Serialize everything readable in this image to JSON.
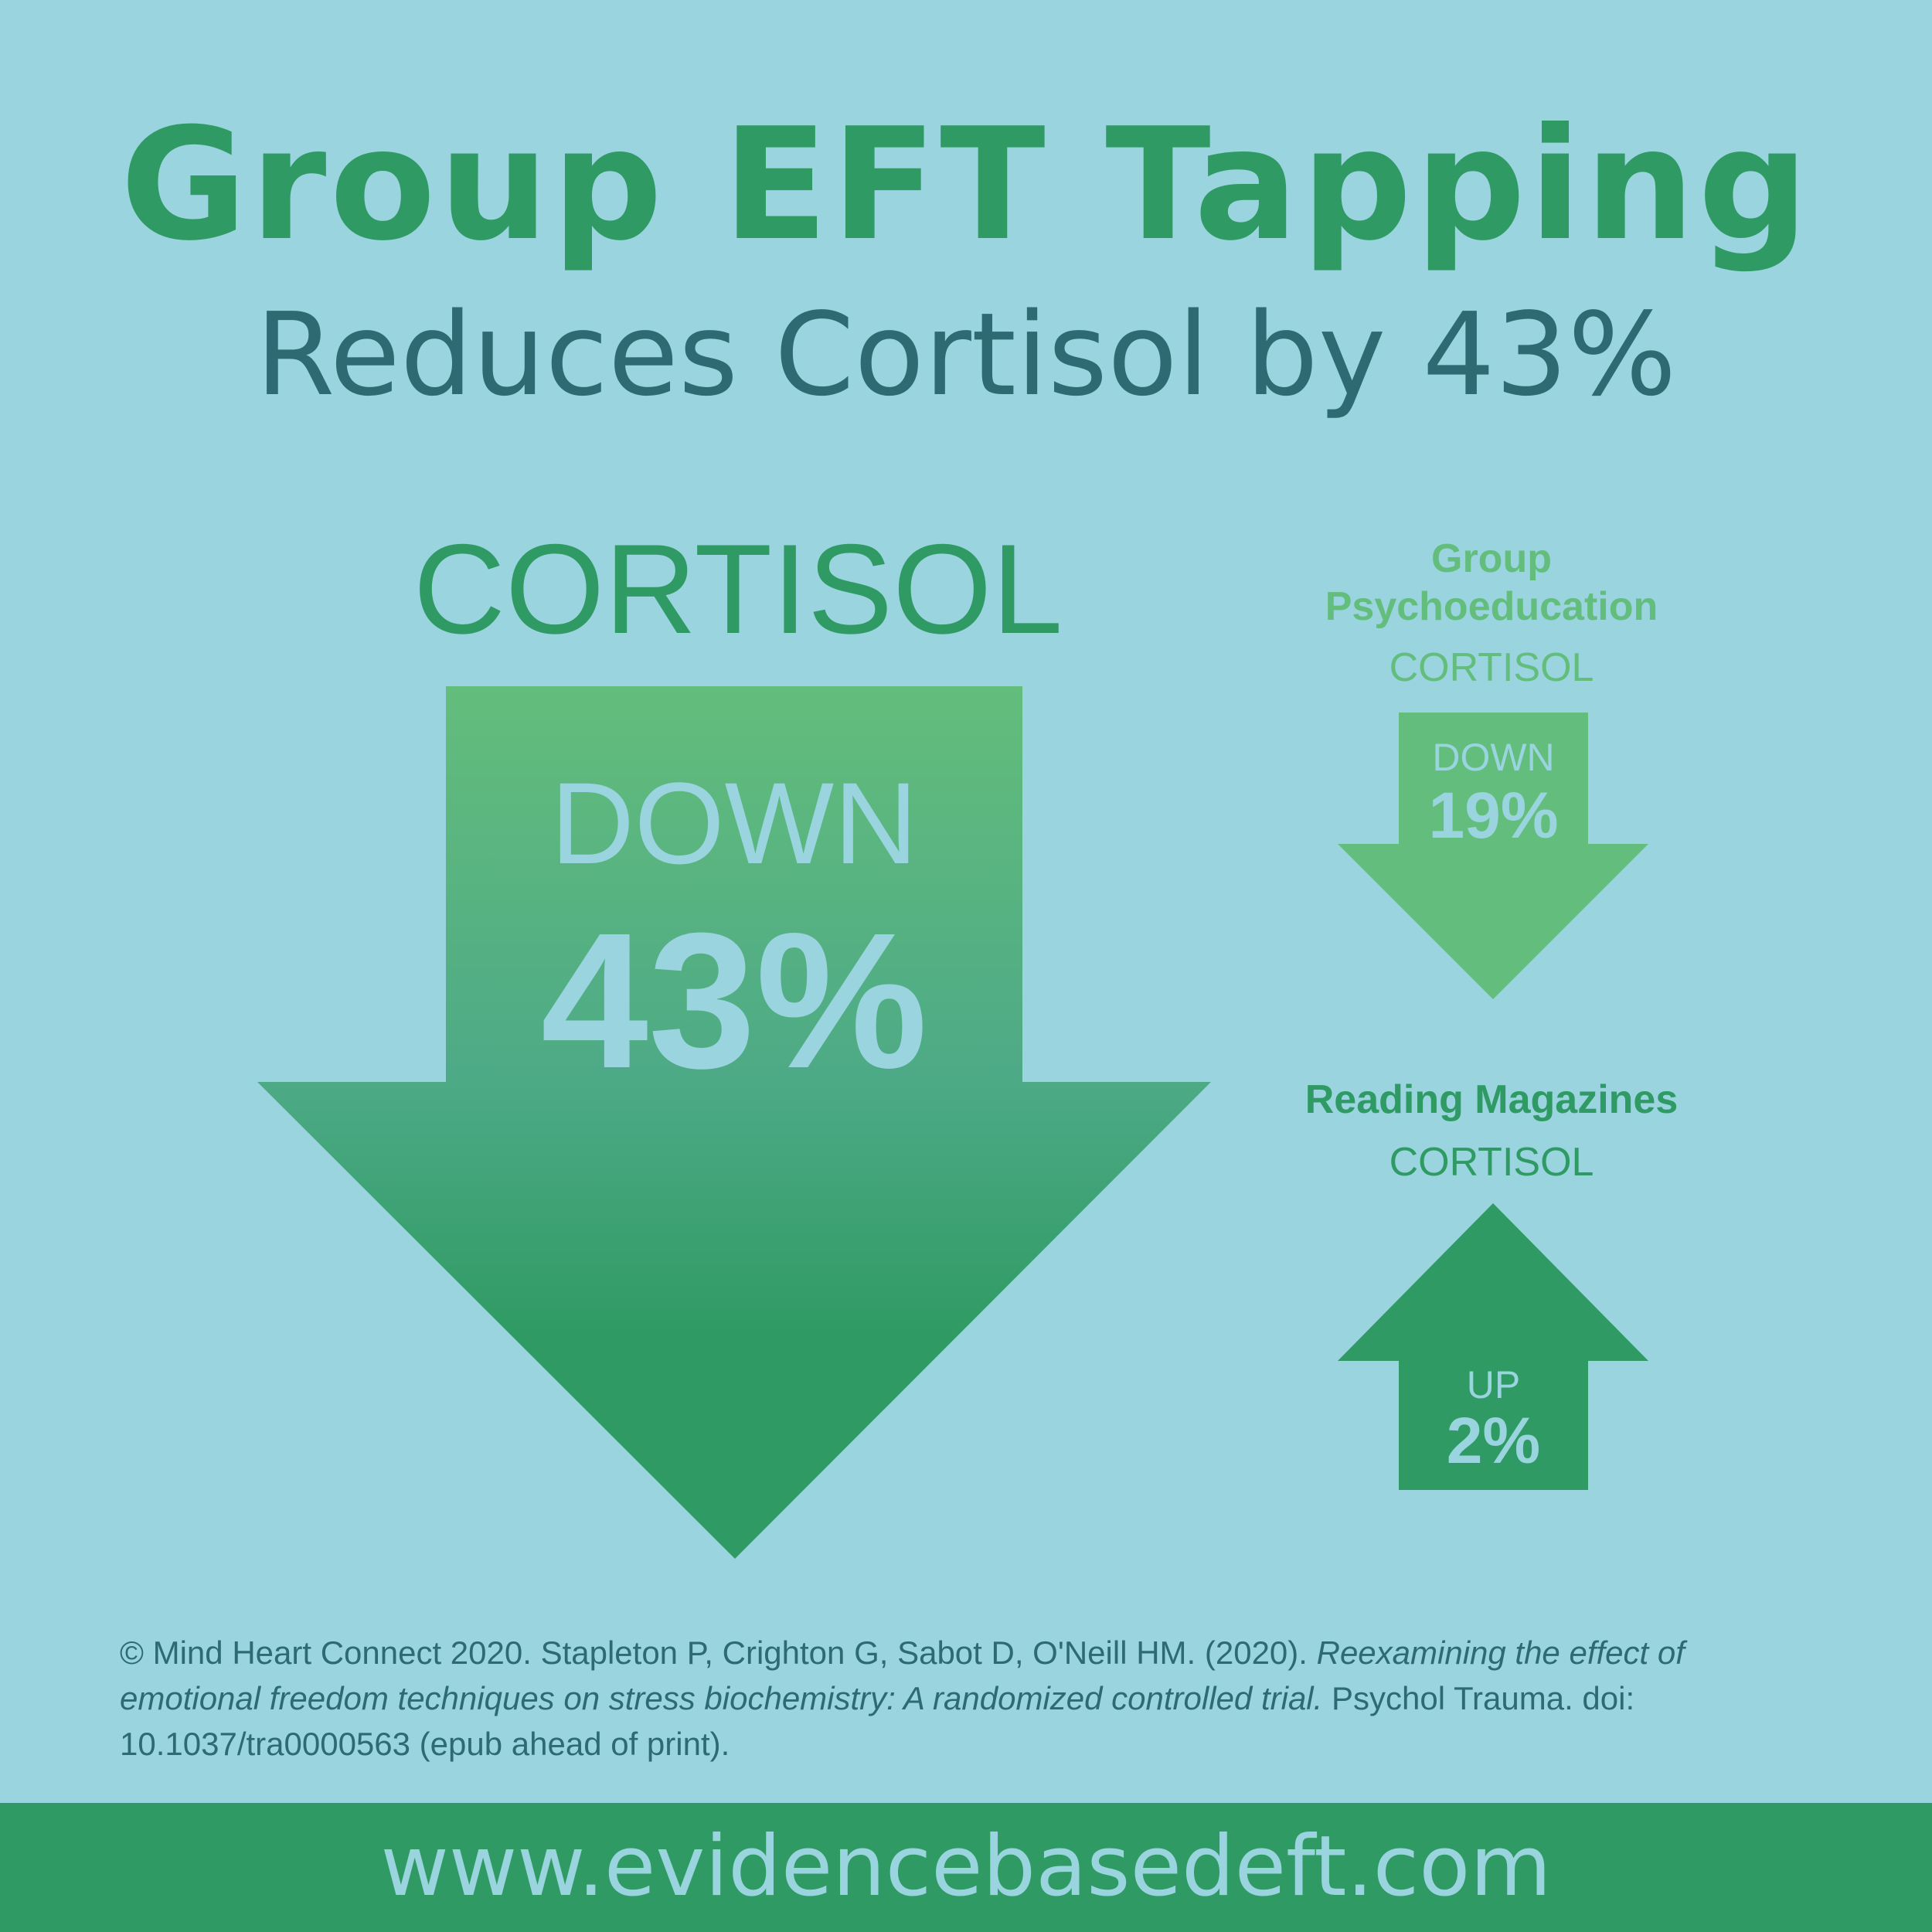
{
  "header": {
    "title": "Group EFT Tapping",
    "subtitle": "Reduces Cortisol by 43%"
  },
  "main_result": {
    "label": "CORTISOL",
    "direction": "DOWN",
    "value": "43%",
    "arrow_icon": "arrow-down-icon"
  },
  "psychoeducation": {
    "group_line1": "Group",
    "group_line2": "Psychoeducation",
    "label": "CORTISOL",
    "direction": "DOWN",
    "value": "19%",
    "arrow_icon": "arrow-down-icon"
  },
  "magazines": {
    "group": "Reading Magazines",
    "label": "CORTISOL",
    "direction": "UP",
    "value": "2%",
    "arrow_icon": "arrow-up-icon"
  },
  "citation": {
    "part1": "© Mind Heart Connect 2020. Stapleton P, Crighton G, Sabot D, O'Neill HM. (2020). ",
    "italic": "Reexamining the effect of emotional freedom techniques on stress biochemistry:  A randomized controlled trial.",
    "part2": " Psychol Trauma. doi: 10.1037/tra0000563 (epub ahead of print)."
  },
  "footer": {
    "url": "www.evidencebasedeft.com"
  },
  "colors": {
    "background": "#99d4df",
    "green": "#2f9a63",
    "light_green": "#63bd7c",
    "teal_text": "#2e6a72"
  }
}
